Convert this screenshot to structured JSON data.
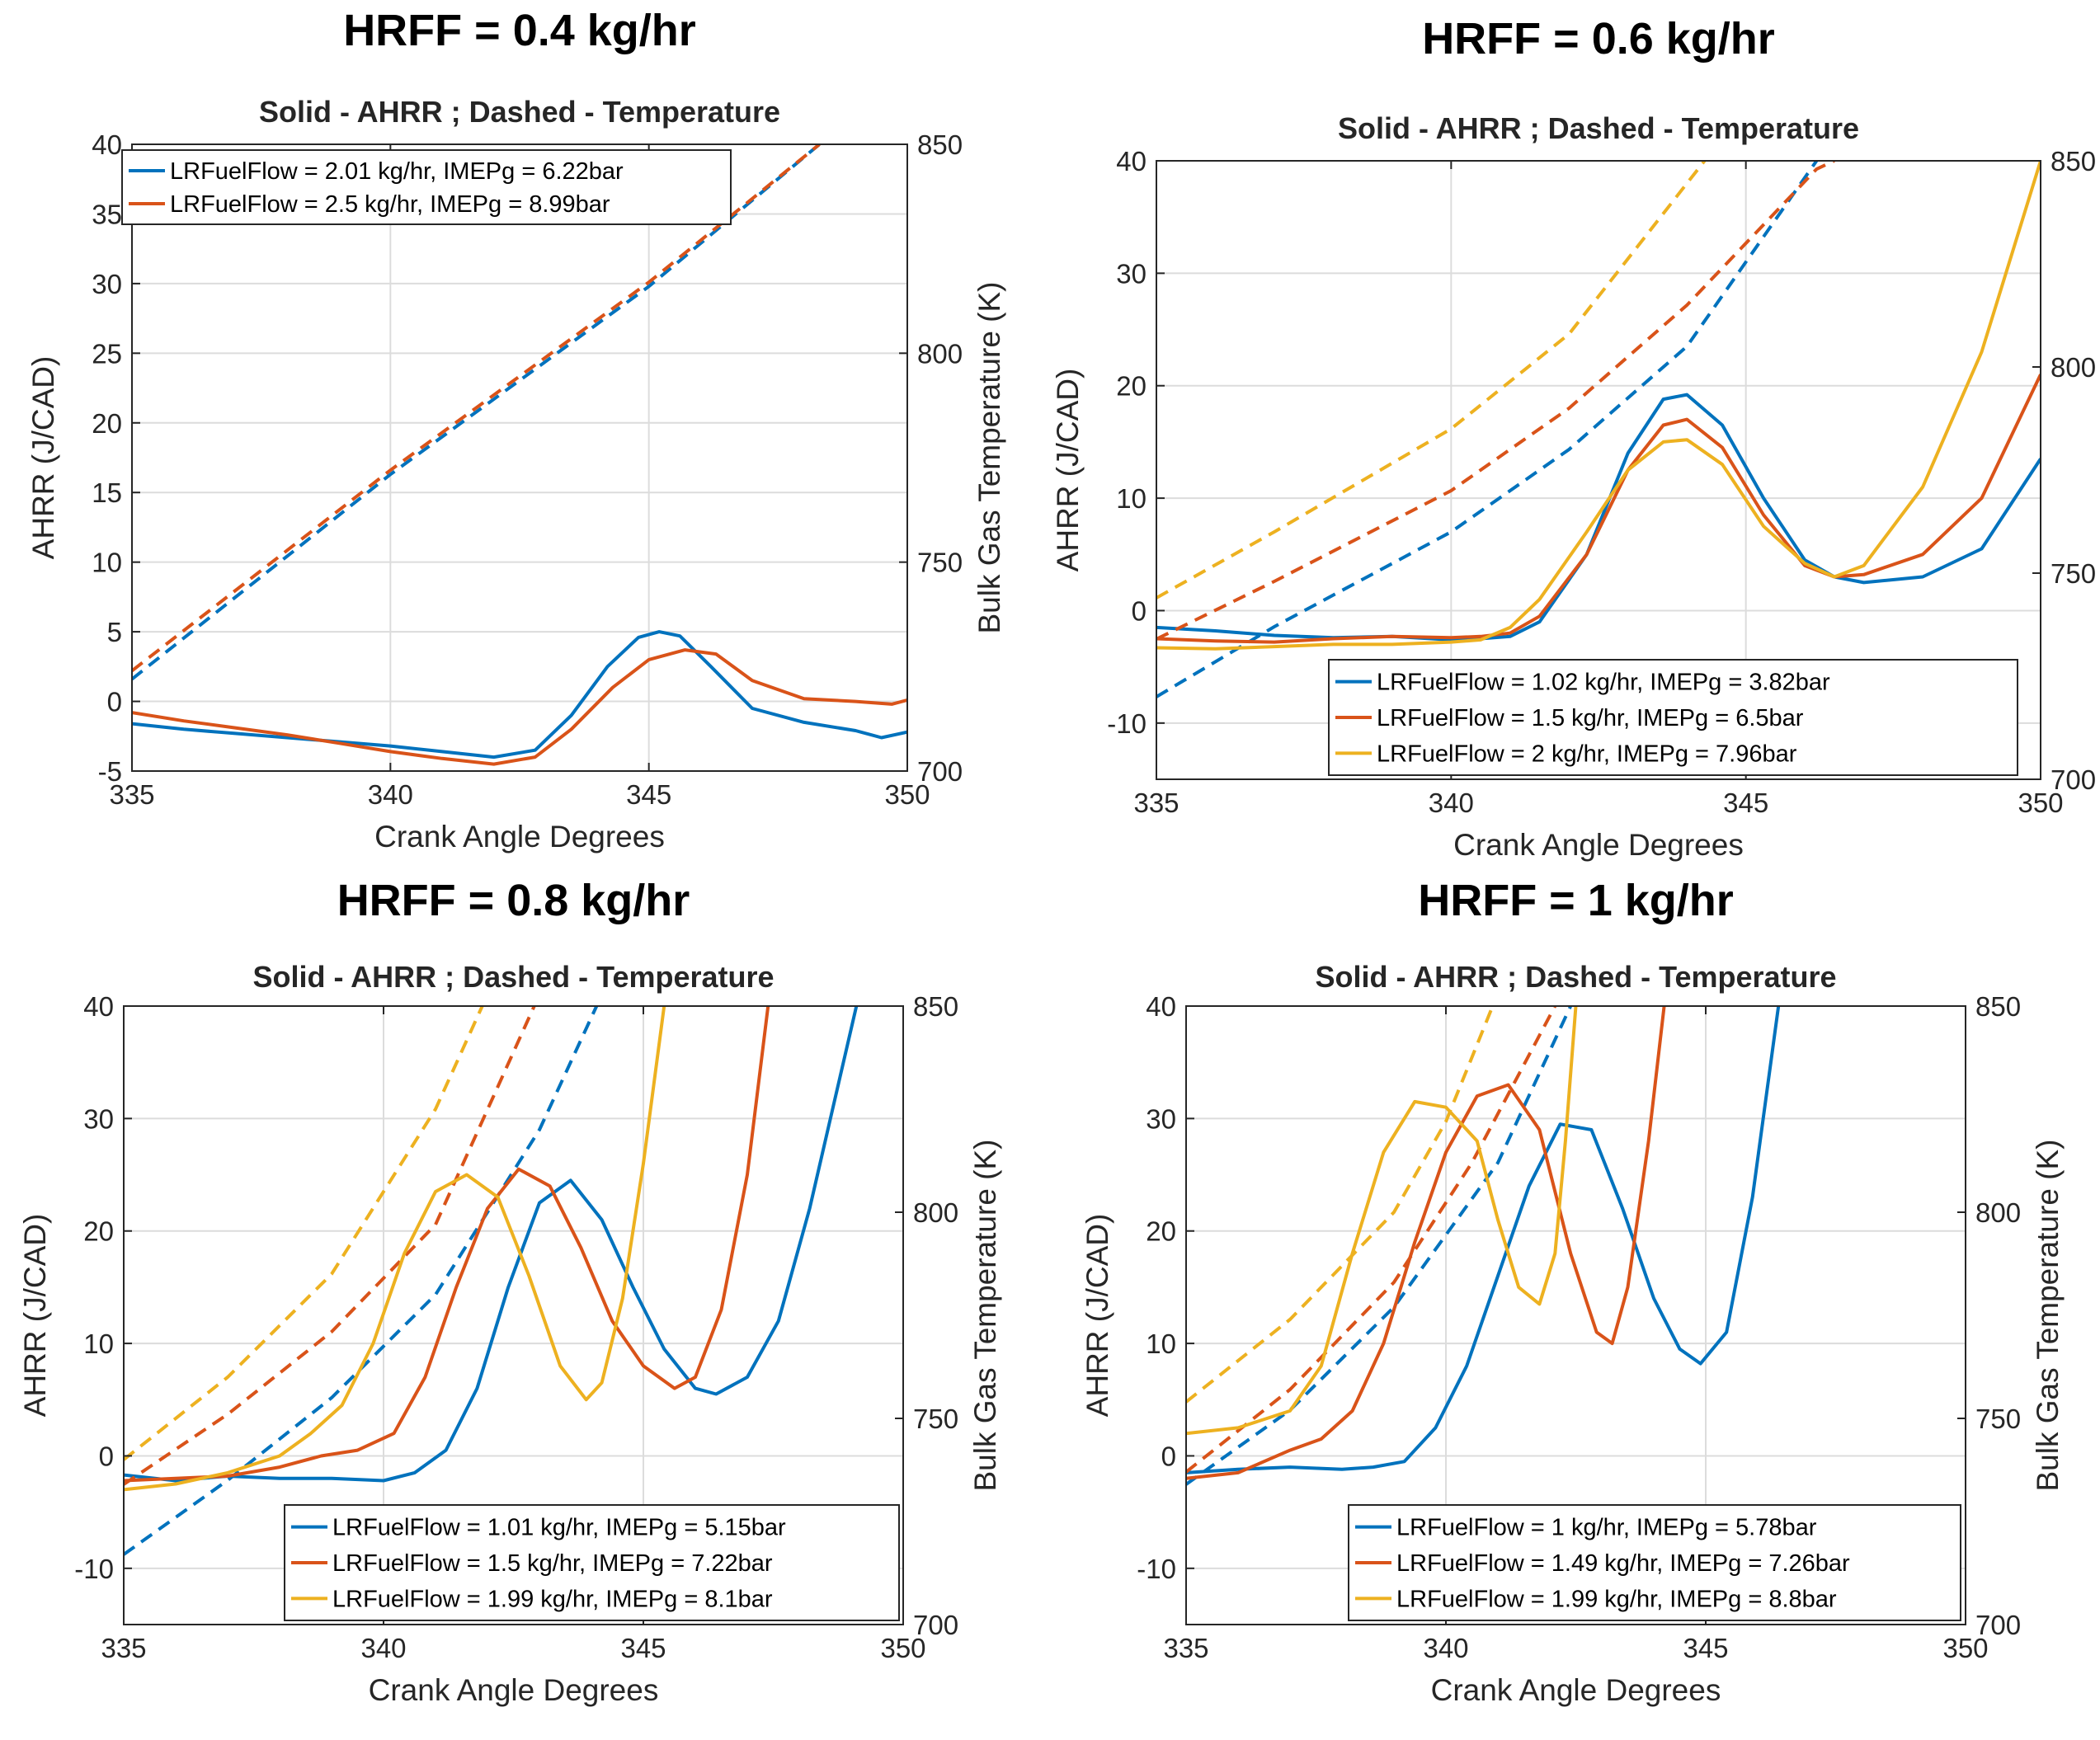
{
  "colors": {
    "blue": "#0072BD",
    "orange": "#D95319",
    "yellow": "#EDB120",
    "grid": "#dcdcdc",
    "axis": "#262626"
  },
  "chart_data": [
    {
      "type": "line",
      "panel_title": "HRFF = 0.4 kg/hr",
      "title": "Solid - AHRR ; Dashed - Temperature",
      "xlabel": "Crank Angle Degrees",
      "ylabel": "AHRR (J/CAD)",
      "ylabel_right": "Bulk Gas Temperature (K)",
      "xlim": [
        335,
        350
      ],
      "ylim": [
        -5,
        40
      ],
      "ylim_right": [
        700,
        850
      ],
      "xticks": [
        335,
        340,
        345,
        350
      ],
      "yticks": [
        -5,
        0,
        5,
        10,
        15,
        20,
        25,
        30,
        35,
        40
      ],
      "yticks_right": [
        700,
        750,
        800,
        850
      ],
      "xtick_labels": [
        "335",
        "340",
        "345",
        "350"
      ],
      "ytick_labels": [
        "-5",
        "0",
        "5",
        "10",
        "15",
        "20",
        "25",
        "30",
        "35",
        "40"
      ],
      "ytick_labels_right": [
        "700",
        "750",
        "800",
        "850"
      ],
      "grid": true,
      "legend_position": "top-left",
      "series": [
        {
          "name": "LRFuelFlow = 2.01 kg/hr, IMEPg = 6.22bar",
          "color": "blue",
          "ahrr": {
            "x": [
              335,
              336,
              337,
              338,
              339,
              340,
              341,
              342,
              342.8,
              343.5,
              344.2,
              344.8,
              345.2,
              345.6,
              346.2,
              347,
              348,
              349,
              349.5,
              350
            ],
            "y": [
              -1.6,
              -2.0,
              -2.3,
              -2.6,
              -2.9,
              -3.2,
              -3.6,
              -4.0,
              -3.5,
              -1.0,
              2.5,
              4.6,
              5.0,
              4.7,
              2.5,
              -0.5,
              -1.5,
              -2.1,
              -2.6,
              -2.2
            ]
          },
          "temp": {
            "x": [
              335,
              340,
              345,
              348.3
            ],
            "y": [
              722,
              771,
              816,
              850
            ]
          }
        },
        {
          "name": "LRFuelFlow = 2.5 kg/hr, IMEPg = 8.99bar",
          "color": "orange",
          "ahrr": {
            "x": [
              335,
              336,
              337,
              338,
              339,
              340,
              341,
              342,
              342.8,
              343.5,
              344.3,
              345,
              345.7,
              346.3,
              347,
              348,
              349,
              349.7,
              350
            ],
            "y": [
              -0.8,
              -1.4,
              -1.9,
              -2.4,
              -3.0,
              -3.6,
              -4.1,
              -4.5,
              -4.0,
              -2.0,
              1.0,
              3.0,
              3.7,
              3.4,
              1.5,
              0.2,
              0.0,
              -0.2,
              0.1
            ]
          },
          "temp": {
            "x": [
              335,
              340,
              345,
              348.3
            ],
            "y": [
              724,
              772,
              817,
              850
            ]
          }
        }
      ]
    },
    {
      "type": "line",
      "panel_title": "HRFF = 0.6 kg/hr",
      "title": "Solid - AHRR ; Dashed - Temperature",
      "xlabel": "Crank Angle Degrees",
      "ylabel": "AHRR (J/CAD)",
      "ylabel_right": "Bulk Gas Temperature (K)",
      "xlim": [
        335,
        350
      ],
      "ylim": [
        -15,
        40
      ],
      "ylim_right": [
        700,
        850
      ],
      "xticks": [
        335,
        340,
        345,
        350
      ],
      "yticks": [
        -10,
        0,
        10,
        20,
        30,
        40
      ],
      "yticks_right": [
        700,
        750,
        800,
        850
      ],
      "xtick_labels": [
        "335",
        "340",
        "345",
        "350"
      ],
      "ytick_labels": [
        "-10",
        "0",
        "10",
        "20",
        "30",
        "40"
      ],
      "ytick_labels_right": [
        "700",
        "750",
        "800",
        "850"
      ],
      "grid": true,
      "legend_position": "bottom-right",
      "series": [
        {
          "name": "LRFuelFlow = 1.02 kg/hr, IMEPg = 3.82bar",
          "color": "blue",
          "ahrr": {
            "x": [
              335,
              336,
              337,
              338,
              339,
              340,
              340.5,
              341,
              341.5,
              342.3,
              343,
              343.6,
              344,
              344.6,
              345.3,
              346,
              346.5,
              347,
              348,
              349,
              350
            ],
            "y": [
              -1.5,
              -1.8,
              -2.2,
              -2.4,
              -2.3,
              -2.6,
              -2.5,
              -2.3,
              -1.0,
              5.0,
              14.0,
              18.8,
              19.2,
              16.5,
              10.0,
              4.5,
              3.0,
              2.5,
              3.0,
              5.5,
              13.5
            ]
          },
          "temp": {
            "x": [
              335,
              337,
              340,
              342,
              344,
              346.2
            ],
            "y": [
              720,
              737,
              760,
              780,
              805,
              850
            ]
          }
        },
        {
          "name": "LRFuelFlow = 1.5 kg/hr, IMEPg = 6.5bar",
          "color": "orange",
          "ahrr": {
            "x": [
              335,
              336,
              337,
              338,
              339,
              340,
              340.5,
              341,
              341.5,
              342.3,
              343,
              343.6,
              344,
              344.6,
              345.3,
              346,
              346.5,
              347,
              348,
              349,
              350
            ],
            "y": [
              -2.5,
              -2.7,
              -2.8,
              -2.5,
              -2.3,
              -2.4,
              -2.3,
              -2.0,
              -0.5,
              5.0,
              12.5,
              16.5,
              17.0,
              14.5,
              8.5,
              4.0,
              3.0,
              3.2,
              5.0,
              10.0,
              21.0
            ]
          },
          "temp": {
            "x": [
              335,
              337,
              340,
              342,
              344,
              346.2,
              346.5
            ],
            "y": [
              734,
              748,
              770,
              790,
              815,
              848,
              850
            ]
          }
        },
        {
          "name": "LRFuelFlow = 2 kg/hr, IMEPg = 7.96bar",
          "color": "yellow",
          "ahrr": {
            "x": [
              335,
              336,
              337,
              338,
              339,
              340,
              340.5,
              341,
              341.5,
              342.3,
              343,
              343.6,
              344,
              344.6,
              345.3,
              346,
              346.5,
              347,
              348,
              349,
              350
            ],
            "y": [
              -3.3,
              -3.4,
              -3.2,
              -3.0,
              -3.0,
              -2.8,
              -2.6,
              -1.5,
              1.0,
              7.0,
              12.5,
              15.0,
              15.2,
              13.0,
              7.5,
              4.2,
              3.0,
              4.0,
              11.0,
              23.0,
              40.0
            ]
          },
          "temp": {
            "x": [
              335,
              337,
              340,
              342,
              344.3
            ],
            "y": [
              744,
              760,
              785,
              808,
              850
            ]
          }
        }
      ]
    },
    {
      "type": "line",
      "panel_title": "HRFF = 0.8 kg/hr",
      "title": "Solid - AHRR ; Dashed - Temperature",
      "xlabel": "Crank Angle Degrees",
      "ylabel": "AHRR (J/CAD)",
      "ylabel_right": "Bulk Gas Temperature (K)",
      "xlim": [
        335,
        350
      ],
      "ylim": [
        -15,
        40
      ],
      "ylim_right": [
        700,
        850
      ],
      "xticks": [
        335,
        340,
        345,
        350
      ],
      "yticks": [
        -10,
        0,
        10,
        20,
        30,
        40
      ],
      "yticks_right": [
        700,
        750,
        800,
        850
      ],
      "xtick_labels": [
        "335",
        "340",
        "345",
        "350"
      ],
      "ytick_labels": [
        "-10",
        "0",
        "10",
        "20",
        "30",
        "40"
      ],
      "ytick_labels_right": [
        "700",
        "750",
        "800",
        "850"
      ],
      "grid": true,
      "legend_position": "bottom-right",
      "series": [
        {
          "name": "LRFuelFlow = 1.01 kg/hr, IMEPg = 5.15bar",
          "color": "blue",
          "ahrr": {
            "x": [
              335,
              336,
              337,
              338,
              339,
              340,
              340.6,
              341.2,
              341.8,
              342.4,
              343.0,
              343.6,
              344.2,
              344.8,
              345.4,
              346.0,
              346.4,
              347.0,
              347.6,
              348.2,
              348.7,
              349.1
            ],
            "y": [
              -1.7,
              -2.2,
              -1.8,
              -2.0,
              -2.0,
              -2.2,
              -1.5,
              0.5,
              6.0,
              15.0,
              22.5,
              24.5,
              21.0,
              15.0,
              9.5,
              6.0,
              5.5,
              7.0,
              12.0,
              22.0,
              32.0,
              40.0
            ]
          },
          "temp": {
            "x": [
              335,
              337,
              339,
              341,
              343,
              344.1
            ],
            "y": [
              717,
              735,
              755,
              780,
              820,
              850
            ]
          }
        },
        {
          "name": "LRFuelFlow = 1.5 kg/hr, IMEPg = 7.22bar",
          "color": "orange",
          "ahrr": {
            "x": [
              335,
              336,
              337,
              338,
              338.8,
              339.5,
              340.2,
              340.8,
              341.4,
              342.0,
              342.6,
              343.2,
              343.8,
              344.4,
              345.0,
              345.6,
              346.0,
              346.5,
              347.0,
              347.4
            ],
            "y": [
              -2.2,
              -2.0,
              -1.8,
              -1.0,
              0.0,
              0.5,
              2.0,
              7.0,
              15.0,
              22.0,
              25.5,
              24.0,
              18.5,
              12.0,
              8.0,
              6.0,
              7.0,
              13.0,
              25.0,
              40.0
            ]
          },
          "temp": {
            "x": [
              335,
              337,
              339,
              341,
              342.9
            ],
            "y": [
              734,
              751,
              771,
              797,
              850
            ]
          }
        },
        {
          "name": "LRFuelFlow = 1.99 kg/hr, IMEPg = 8.1bar",
          "color": "yellow",
          "ahrr": {
            "x": [
              335,
              336,
              337,
              338,
              338.6,
              339.2,
              339.8,
              340.4,
              341.0,
              341.6,
              342.2,
              342.8,
              343.4,
              343.9,
              344.2,
              344.6,
              345.0,
              345.4
            ],
            "y": [
              -3.0,
              -2.5,
              -1.5,
              0.0,
              2.0,
              4.5,
              10.0,
              18.0,
              23.5,
              25.0,
              23.0,
              16.0,
              8.0,
              5.0,
              6.5,
              14.0,
              26.0,
              40.0
            ]
          },
          "temp": {
            "x": [
              335,
              337,
              339,
              341,
              341.9
            ],
            "y": [
              740,
              760,
              785,
              825,
              850
            ]
          }
        }
      ]
    },
    {
      "type": "line",
      "panel_title": "HRFF = 1 kg/hr",
      "title": "Solid - AHRR ; Dashed - Temperature",
      "xlabel": "Crank Angle Degrees",
      "ylabel": "AHRR (J/CAD)",
      "ylabel_right": "Bulk Gas Temperature (K)",
      "xlim": [
        335,
        350
      ],
      "ylim": [
        -15,
        40
      ],
      "ylim_right": [
        700,
        850
      ],
      "xticks": [
        335,
        340,
        345,
        350
      ],
      "yticks": [
        -10,
        0,
        10,
        20,
        30,
        40
      ],
      "yticks_right": [
        700,
        750,
        800,
        850
      ],
      "xtick_labels": [
        "335",
        "340",
        "345",
        "350"
      ],
      "ytick_labels": [
        "-10",
        "0",
        "10",
        "20",
        "30",
        "40"
      ],
      "ytick_labels_right": [
        "700",
        "750",
        "800",
        "850"
      ],
      "grid": true,
      "legend_position": "bottom-right",
      "series": [
        {
          "name": "LRFuelFlow = 1 kg/hr, IMEPg = 5.78bar",
          "color": "blue",
          "ahrr": {
            "x": [
              335,
              336,
              337,
              338,
              338.6,
              339.2,
              339.8,
              340.4,
              341.0,
              341.6,
              342.2,
              342.8,
              343.4,
              344.0,
              344.5,
              344.9,
              345.4,
              345.9,
              346.4
            ],
            "y": [
              -1.5,
              -1.2,
              -1.0,
              -1.2,
              -1.0,
              -0.5,
              2.5,
              8.0,
              16.0,
              24.0,
              29.5,
              29.0,
              22.0,
              14.0,
              9.5,
              8.2,
              11.0,
              23.0,
              40.0
            ]
          },
          "temp": {
            "x": [
              335,
              337,
              339,
              341,
              342.4
            ],
            "y": [
              734,
              752,
              777,
              812,
              850
            ]
          }
        },
        {
          "name": "LRFuelFlow = 1.49 kg/hr, IMEPg = 7.26bar",
          "color": "orange",
          "ahrr": {
            "x": [
              335,
              336,
              337,
              337.6,
              338.2,
              338.8,
              339.4,
              340.0,
              340.6,
              341.2,
              341.8,
              342.4,
              342.9,
              343.2,
              343.5,
              343.9,
              344.2
            ],
            "y": [
              -2.0,
              -1.5,
              0.5,
              1.5,
              4.0,
              10.0,
              19.0,
              27.0,
              32.0,
              33.0,
              29.0,
              18.0,
              11.0,
              10.0,
              15.0,
              28.0,
              40.0
            ]
          },
          "temp": {
            "x": [
              335,
              337,
              339,
              340.5,
              342.1
            ],
            "y": [
              737,
              757,
              783,
              812,
              850
            ]
          }
        },
        {
          "name": "LRFuelFlow = 1.99 kg/hr, IMEPg = 8.8bar",
          "color": "yellow",
          "ahrr": {
            "x": [
              335,
              336,
              337,
              337.6,
              338.2,
              338.8,
              339.4,
              340.0,
              340.6,
              341.0,
              341.4,
              341.8,
              342.1,
              342.3,
              342.5
            ],
            "y": [
              2.0,
              2.5,
              4.0,
              8.0,
              18.0,
              27.0,
              31.5,
              31.0,
              28.0,
              21.0,
              15.0,
              13.5,
              18.0,
              28.0,
              40.0
            ]
          },
          "temp": {
            "x": [
              335,
              337,
              339,
              340,
              340.9
            ],
            "y": [
              754,
              774,
              800,
              822,
              850
            ]
          }
        }
      ]
    }
  ]
}
